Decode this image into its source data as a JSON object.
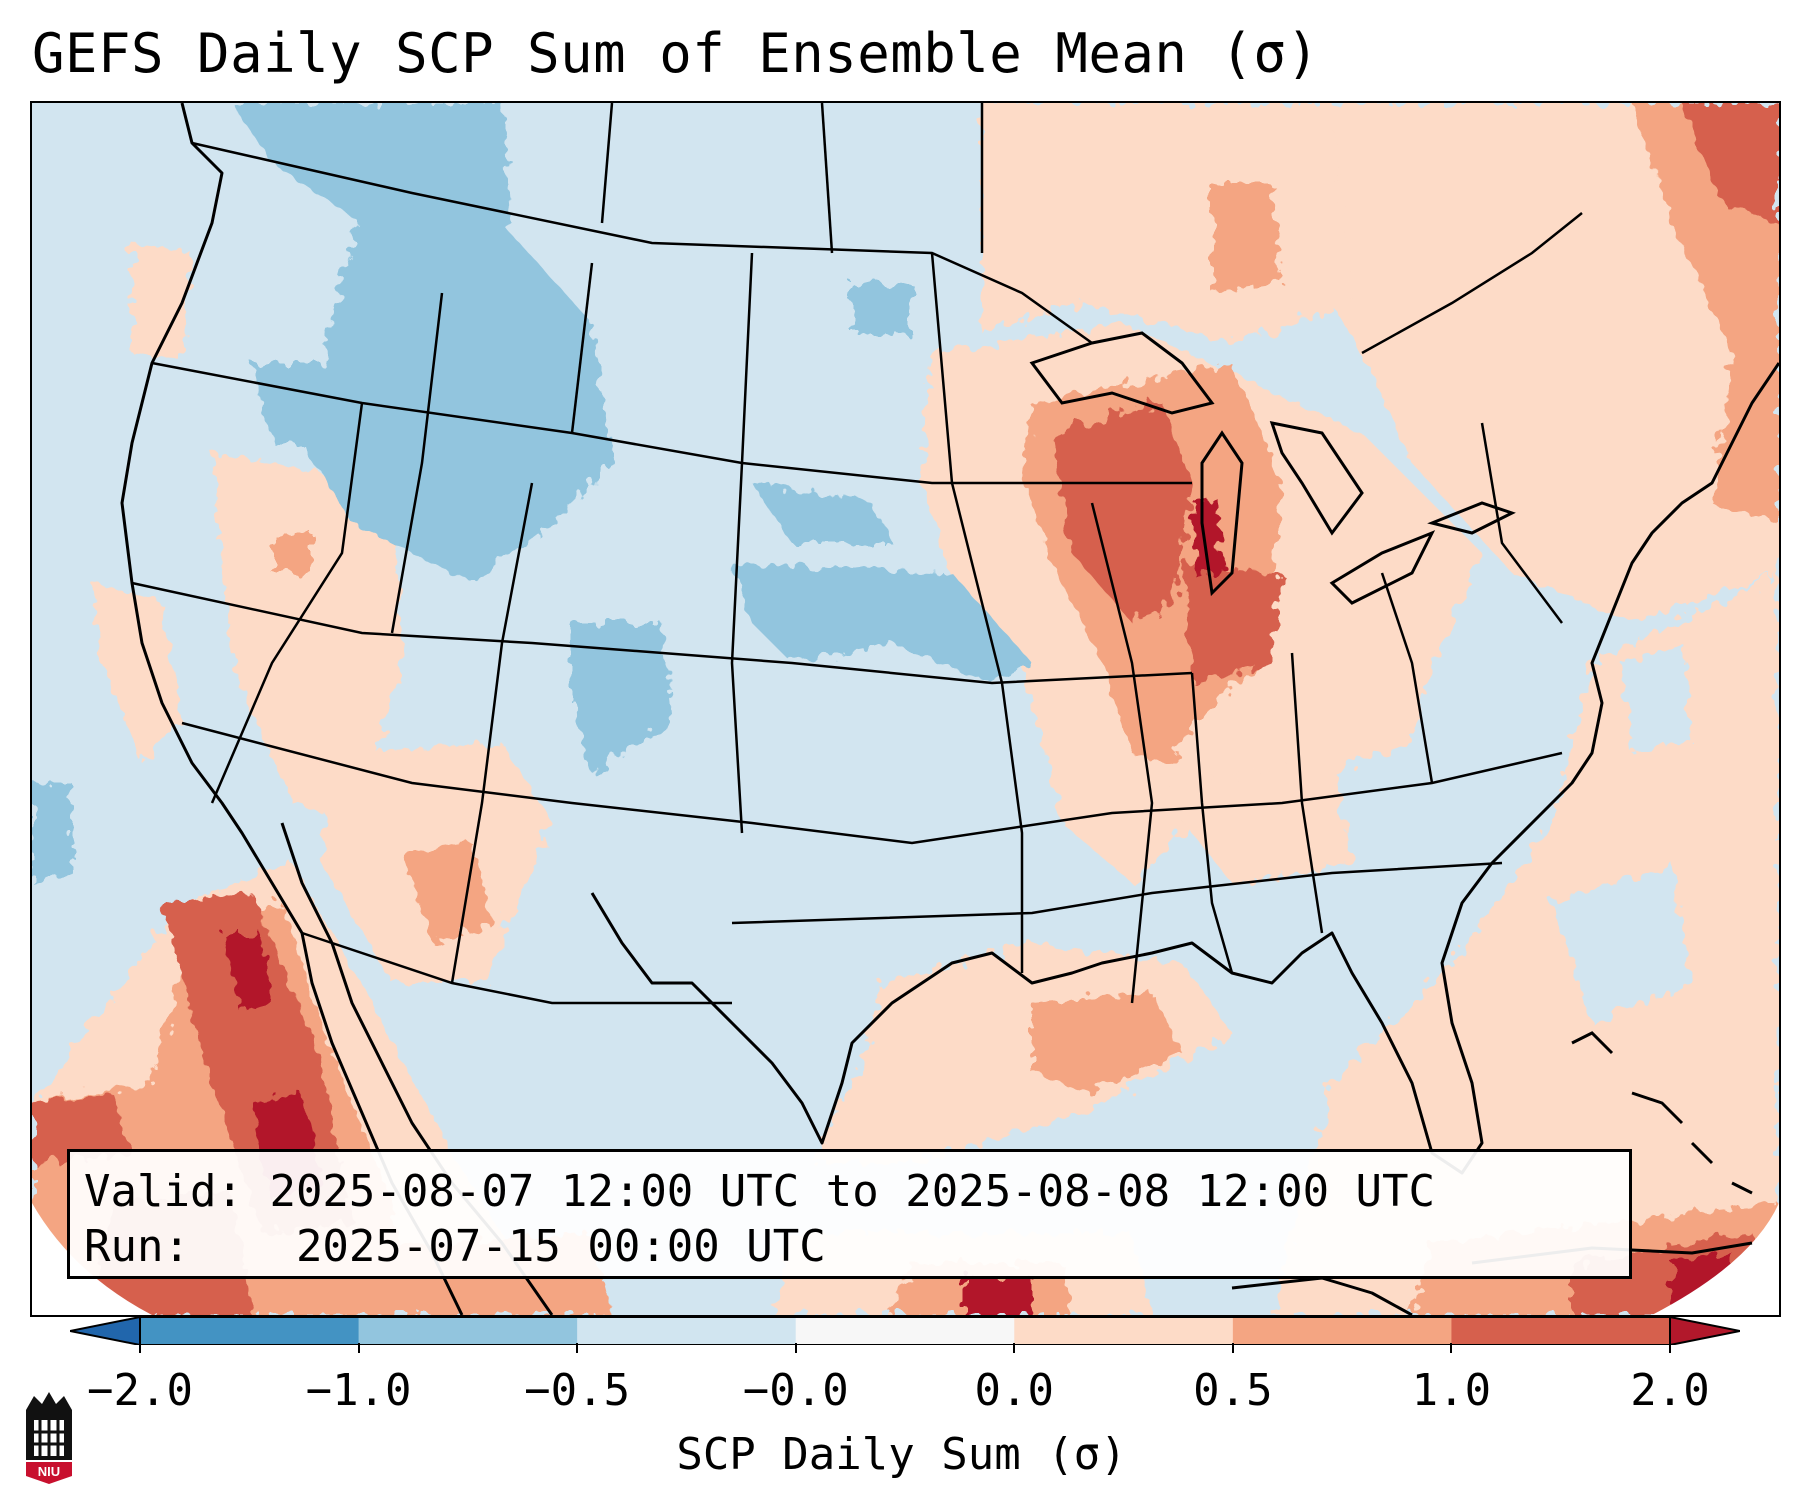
{
  "title": "GEFS Daily SCP Sum of Ensemble Mean (σ)",
  "info": {
    "valid_label": "Valid:",
    "valid_value": "2025-08-07 12:00 UTC to 2025-08-08 12:00 UTC",
    "run_label": "Run:",
    "run_value": "2025-07-15 00:00 UTC"
  },
  "colorbar": {
    "label": "SCP Daily Sum (σ)",
    "ticks": [
      "−2.0",
      "−1.0",
      "−0.5",
      "−0.0",
      "0.0",
      "0.5",
      "1.0",
      "2.0"
    ],
    "bins": [
      {
        "range": "< -2.0",
        "color": "#2166ac"
      },
      {
        "range": "-2.0 to -1.0",
        "color": "#4393c3"
      },
      {
        "range": "-1.0 to -0.5",
        "color": "#92c5de"
      },
      {
        "range": "-0.5 to -0.0",
        "color": "#d1e5f0"
      },
      {
        "range": "-0.0 to 0.0",
        "color": "#f7f7f7"
      },
      {
        "range": "0.0 to 0.5",
        "color": "#fddbc7"
      },
      {
        "range": "0.5 to 1.0",
        "color": "#f4a582"
      },
      {
        "range": "1.0 to 2.0",
        "color": "#d6604d"
      },
      {
        "range": "> 2.0",
        "color": "#b2182b"
      }
    ]
  },
  "map": {
    "projection": "Lambert Conformal Conic, CONUS",
    "background_value": "-0.5 to -0.0",
    "anomaly_regions": [
      {
        "region": "Northern Rockies / Idaho / Montana",
        "range": "-1.0 to -0.5"
      },
      {
        "region": "Colorado / Nebraska / Kansas",
        "range": "-1.0 to -0.5"
      },
      {
        "region": "Great Lakes / Michigan / Wisconsin",
        "range": "1.0 to 2.0"
      },
      {
        "region": "Lake Michigan",
        "range": "> 2.0"
      },
      {
        "region": "Indiana / Ohio",
        "range": "0.5 to 1.0"
      },
      {
        "region": "Desert Southwest / Arizona",
        "range": "0.0 to 0.5"
      },
      {
        "region": "Baja California / Gulf of California",
        "range": "1.0 to 2.0"
      },
      {
        "region": "Sierra Madre Occidental",
        "range": "> 2.0"
      },
      {
        "region": "Louisiana coast",
        "range": "0.5 to 1.0"
      },
      {
        "region": "Atlantic Ocean",
        "range": "0.0 to 0.5"
      },
      {
        "region": "Eastern Canada / Quebec",
        "range": "0.5 to 1.0"
      },
      {
        "region": "Cuba / Caribbean",
        "range": "1.0 to 2.0"
      }
    ]
  },
  "logo": {
    "text": "NIU",
    "color": "#c8102e"
  }
}
